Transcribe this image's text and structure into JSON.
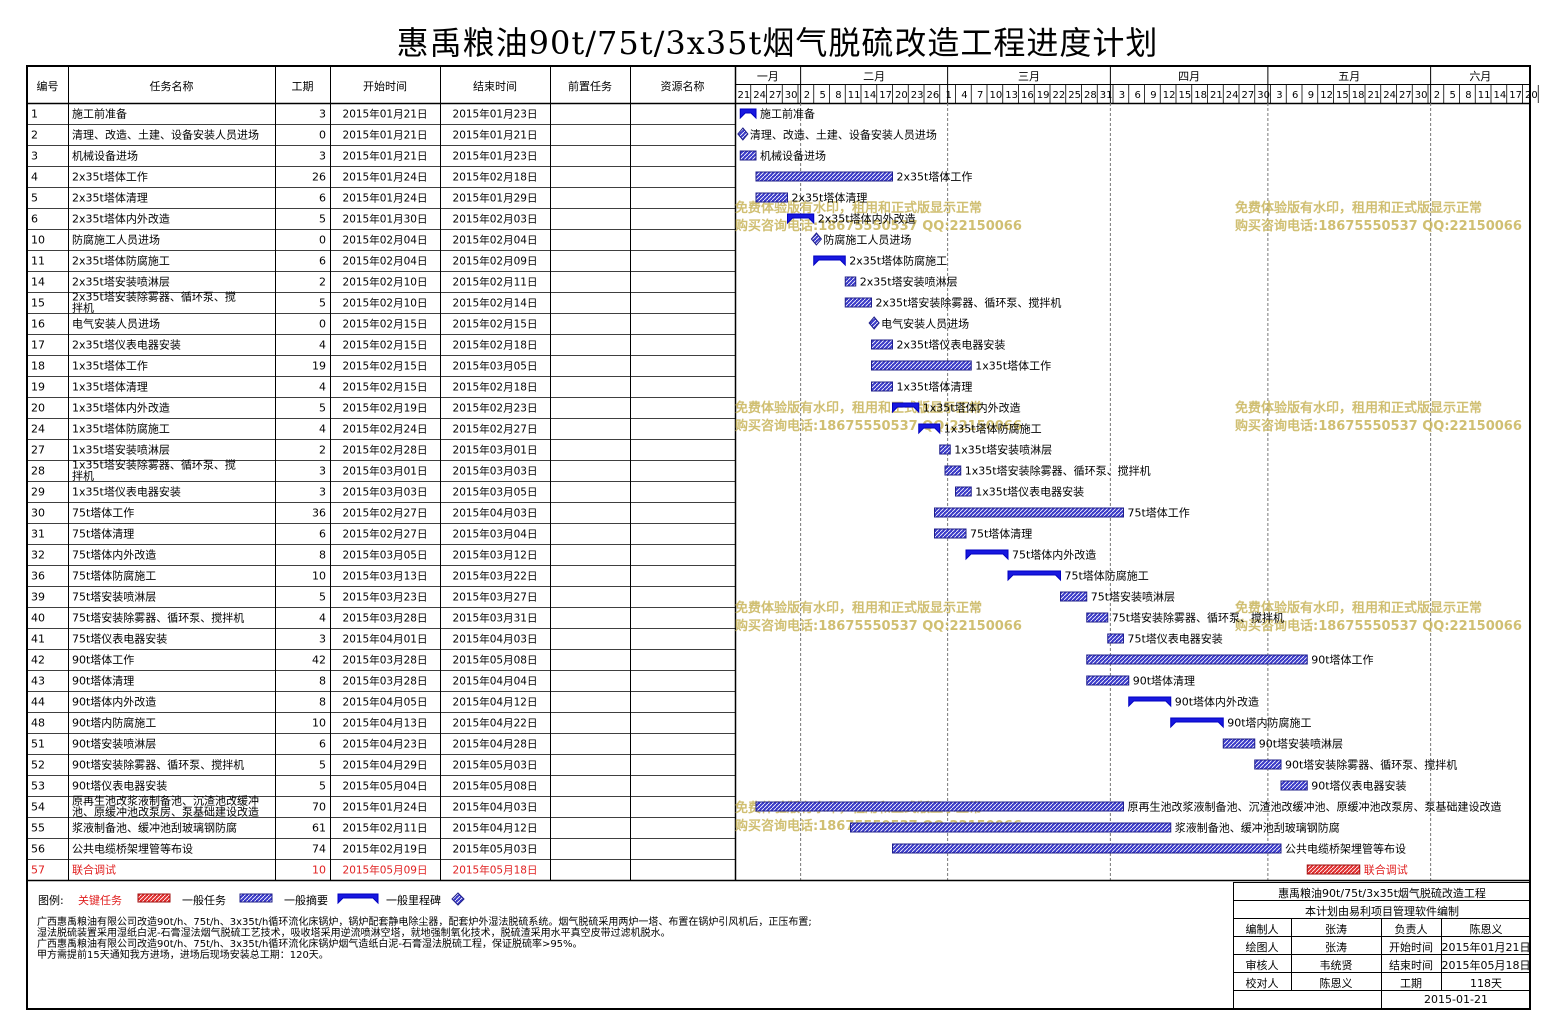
{
  "title": "惠禹粮油90t/75t/3x35t烟气脱硫改造工程进度计划",
  "header": {
    "id": "编号",
    "name": "任务名称",
    "duration": "工期",
    "start": "开始时间",
    "finish": "结束时间",
    "predecessor": "前置任务",
    "resource": "资源名称"
  },
  "timeline": {
    "months": [
      "一月",
      "二月",
      "三月",
      "四月",
      "五月",
      "六月"
    ],
    "days": [
      "21",
      "24",
      "27",
      "30",
      "2",
      "5",
      "8",
      "11",
      "14",
      "17",
      "20",
      "23",
      "26",
      "1",
      "4",
      "7",
      "10",
      "13",
      "16",
      "19",
      "22",
      "25",
      "28",
      "31",
      "3",
      "6",
      "9",
      "12",
      "15",
      "18",
      "21",
      "24",
      "27",
      "30",
      "3",
      "6",
      "9",
      "12",
      "15",
      "18",
      "21",
      "24",
      "27",
      "30",
      "2",
      "5",
      "8",
      "11",
      "14",
      "17",
      "20"
    ]
  },
  "watermark": {
    "line1": "免费体验版有水印，租用和正式版显示正常",
    "line2": "购买咨询电话:18675550537 QQ:22150066"
  },
  "legend": {
    "label": "图例:",
    "critical": "关键任务",
    "normal": "一般任务",
    "summary": "一般摘要",
    "milestone": "一般里程碑"
  },
  "notes": [
    "广西惠禹粮油有限公司改造90t/h、75t/h、3x35t/h循环流化床锅炉，锅炉配套静电除尘器，配套炉外湿法脱硫系统。烟气脱硫采用两炉一塔、布置在锅炉引风机后，正压布置;",
    "湿法脱硫装置采用湿纸白泥-石膏湿法烟气脱硫工艺技术，吸收塔采用逆流喷淋空塔，就地强制氧化技术，脱硫渣采用水平真空皮带过滤机脱水。",
    "广西惠禹粮油有限公司改造90t/h、75t/h、3x35t/h循环流化床锅炉烟气造纸白泥-石膏湿法脱硫工程，保证脱硫率>95%。",
    "甲方需提前15天通知我方进场，进场后现场安装总工期：120天。"
  ],
  "info": {
    "project": "惠禹粮油90t/75t/3x35t烟气脱硫改造工程",
    "software": "本计划由易利项目管理软件编制",
    "compiler_label": "编制人",
    "compiler": "张涛",
    "owner_label": "负责人",
    "owner": "陈恩义",
    "drawer_label": "绘图人",
    "drawer": "张涛",
    "start_label": "开始时间",
    "start": "2015年01月21日",
    "reviewer_label": "审核人",
    "reviewer": "韦统贤",
    "end_label": "结束时间",
    "end": "2015年05月18日",
    "checker_label": "校对人",
    "checker": "陈恩义",
    "duration_label": "工期",
    "duration": "118天",
    "date": "2015-01-21"
  },
  "chart_data": {
    "type": "gantt",
    "timeline_start": "2015-01-21",
    "timeline_end": "2015-06-22",
    "tasks": [
      {
        "id": "1",
        "name": "施工前准备",
        "duration": 3,
        "start": "2015年01月21日",
        "end": "2015年01月23日",
        "kind": "summary"
      },
      {
        "id": "2",
        "name": "清理、改造、土建、设备安装人员进场",
        "duration": 0,
        "start": "2015年01月21日",
        "end": "2015年01月21日",
        "kind": "milestone"
      },
      {
        "id": "3",
        "name": "机械设备进场",
        "duration": 3,
        "start": "2015年01月21日",
        "end": "2015年01月23日",
        "kind": "task"
      },
      {
        "id": "4",
        "name": "2x35t塔体工作",
        "duration": 26,
        "start": "2015年01月24日",
        "end": "2015年02月18日",
        "kind": "task"
      },
      {
        "id": "5",
        "name": "2x35t塔体清理",
        "duration": 6,
        "start": "2015年01月24日",
        "end": "2015年01月29日",
        "kind": "task"
      },
      {
        "id": "6",
        "name": "2x35t塔体内外改造",
        "duration": 5,
        "start": "2015年01月30日",
        "end": "2015年02月03日",
        "kind": "summary"
      },
      {
        "id": "10",
        "name": "防腐施工人员进场",
        "duration": 0,
        "start": "2015年02月04日",
        "end": "2015年02月04日",
        "kind": "milestone"
      },
      {
        "id": "11",
        "name": "2x35t塔体防腐施工",
        "duration": 6,
        "start": "2015年02月04日",
        "end": "2015年02月09日",
        "kind": "summary"
      },
      {
        "id": "14",
        "name": "2x35t塔安装喷淋层",
        "duration": 2,
        "start": "2015年02月10日",
        "end": "2015年02月11日",
        "kind": "task"
      },
      {
        "id": "15",
        "name": "2x35t塔安装除雾器、循环泵、搅拌机",
        "duration": 5,
        "start": "2015年02月10日",
        "end": "2015年02月14日",
        "kind": "task"
      },
      {
        "id": "16",
        "name": "电气安装人员进场",
        "duration": 0,
        "start": "2015年02月15日",
        "end": "2015年02月15日",
        "kind": "milestone"
      },
      {
        "id": "17",
        "name": "2x35t塔仪表电器安装",
        "duration": 4,
        "start": "2015年02月15日",
        "end": "2015年02月18日",
        "kind": "task"
      },
      {
        "id": "18",
        "name": "1x35t塔体工作",
        "duration": 19,
        "start": "2015年02月15日",
        "end": "2015年03月05日",
        "kind": "task"
      },
      {
        "id": "19",
        "name": "1x35t塔体清理",
        "duration": 4,
        "start": "2015年02月15日",
        "end": "2015年02月18日",
        "kind": "task"
      },
      {
        "id": "20",
        "name": "1x35t塔体内外改造",
        "duration": 5,
        "start": "2015年02月19日",
        "end": "2015年02月23日",
        "kind": "summary"
      },
      {
        "id": "24",
        "name": "1x35t塔体防腐施工",
        "duration": 4,
        "start": "2015年02月24日",
        "end": "2015年02月27日",
        "kind": "summary"
      },
      {
        "id": "27",
        "name": "1x35t塔安装喷淋层",
        "duration": 2,
        "start": "2015年02月28日",
        "end": "2015年03月01日",
        "kind": "task"
      },
      {
        "id": "28",
        "name": "1x35t塔安装除雾器、循环泵、搅拌机",
        "duration": 3,
        "start": "2015年03月01日",
        "end": "2015年03月03日",
        "kind": "task"
      },
      {
        "id": "29",
        "name": "1x35t塔仪表电器安装",
        "duration": 3,
        "start": "2015年03月03日",
        "end": "2015年03月05日",
        "kind": "task"
      },
      {
        "id": "30",
        "name": "75t塔体工作",
        "duration": 36,
        "start": "2015年02月27日",
        "end": "2015年04月03日",
        "kind": "task"
      },
      {
        "id": "31",
        "name": "75t塔体清理",
        "duration": 6,
        "start": "2015年02月27日",
        "end": "2015年03月04日",
        "kind": "task"
      },
      {
        "id": "32",
        "name": "75t塔体内外改造",
        "duration": 8,
        "start": "2015年03月05日",
        "end": "2015年03月12日",
        "kind": "summary"
      },
      {
        "id": "36",
        "name": "75t塔体防腐施工",
        "duration": 10,
        "start": "2015年03月13日",
        "end": "2015年03月22日",
        "kind": "summary"
      },
      {
        "id": "39",
        "name": "75t塔安装喷淋层",
        "duration": 5,
        "start": "2015年03月23日",
        "end": "2015年03月27日",
        "kind": "task"
      },
      {
        "id": "40",
        "name": "75t塔安装除雾器、循环泵、搅拌机",
        "duration": 4,
        "start": "2015年03月28日",
        "end": "2015年03月31日",
        "kind": "task"
      },
      {
        "id": "41",
        "name": "75t塔仪表电器安装",
        "duration": 3,
        "start": "2015年04月01日",
        "end": "2015年04月03日",
        "kind": "task"
      },
      {
        "id": "42",
        "name": "90t塔体工作",
        "duration": 42,
        "start": "2015年03月28日",
        "end": "2015年05月08日",
        "kind": "task"
      },
      {
        "id": "43",
        "name": "90t塔体清理",
        "duration": 8,
        "start": "2015年03月28日",
        "end": "2015年04月04日",
        "kind": "task"
      },
      {
        "id": "44",
        "name": "90t塔体内外改造",
        "duration": 8,
        "start": "2015年04月05日",
        "end": "2015年04月12日",
        "kind": "summary"
      },
      {
        "id": "48",
        "name": "90t塔内防腐施工",
        "duration": 10,
        "start": "2015年04月13日",
        "end": "2015年04月22日",
        "kind": "summary"
      },
      {
        "id": "51",
        "name": "90t塔安装喷淋层",
        "duration": 6,
        "start": "2015年04月23日",
        "end": "2015年04月28日",
        "kind": "task"
      },
      {
        "id": "52",
        "name": "90t塔安装除雾器、循环泵、搅拌机",
        "duration": 5,
        "start": "2015年04月29日",
        "end": "2015年05月03日",
        "kind": "task"
      },
      {
        "id": "53",
        "name": "90t塔仪表电器安装",
        "duration": 5,
        "start": "2015年05月04日",
        "end": "2015年05月08日",
        "kind": "task"
      },
      {
        "id": "54",
        "name": "原再生池改浆液制备池、沉渣池改缓冲池、原缓冲池改泵房、泵基础建设改造",
        "duration": 70,
        "start": "2015年01月24日",
        "end": "2015年04月03日",
        "kind": "task"
      },
      {
        "id": "55",
        "name": "浆液制备池、缓冲池刮玻璃钢防腐",
        "duration": 61,
        "start": "2015年02月11日",
        "end": "2015年04月12日",
        "kind": "task"
      },
      {
        "id": "56",
        "name": "公共电缆桥架埋管等布设",
        "duration": 74,
        "start": "2015年02月19日",
        "end": "2015年05月03日",
        "kind": "task"
      },
      {
        "id": "57",
        "name": "联合调试",
        "duration": 10,
        "start": "2015年05月09日",
        "end": "2015年05月18日",
        "kind": "critical"
      }
    ]
  }
}
